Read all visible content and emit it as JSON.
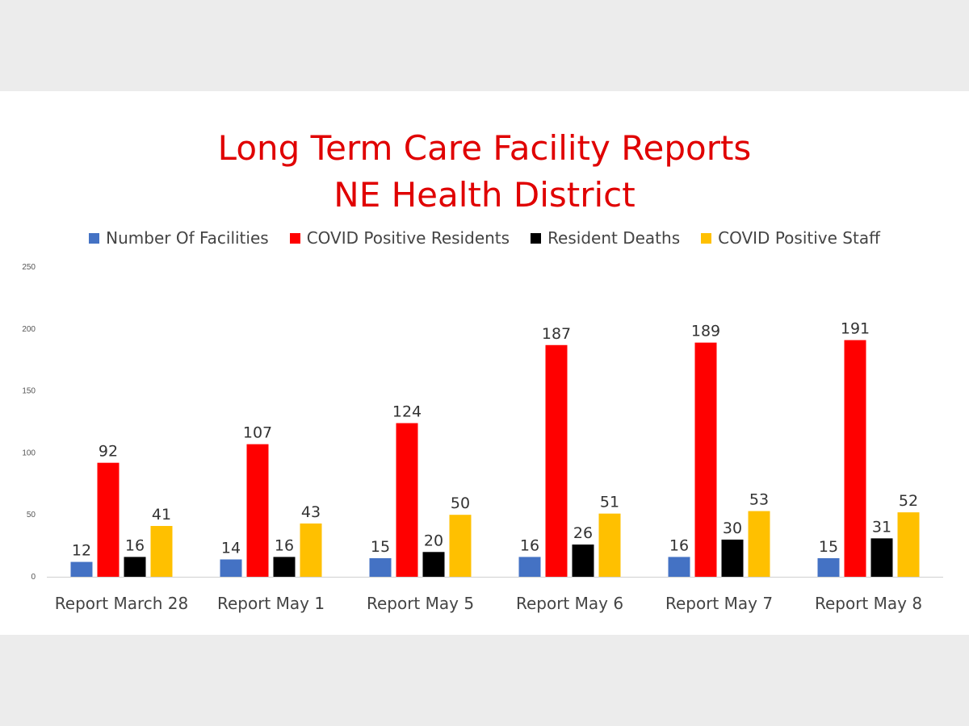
{
  "chart_data": {
    "type": "bar",
    "title": [
      "Long Term Care Facility Reports",
      "NE Health District"
    ],
    "xlabel": "",
    "ylabel": "",
    "ylim": [
      0,
      250
    ],
    "yticks": [
      "0",
      "50",
      "100",
      "150",
      "200",
      "250"
    ],
    "grid": false,
    "legend_position": "top",
    "categories": [
      "Report March 28",
      "Report May 1",
      "Report May 5",
      "Report May 6",
      "Report May 7",
      "Report May 8"
    ],
    "series": [
      {
        "name": "Number Of Facilities",
        "color": "#4472c4",
        "values": [
          12,
          14,
          15,
          16,
          16,
          15
        ]
      },
      {
        "name": "COVID Positive Residents",
        "color": "#ff0000",
        "values": [
          92,
          107,
          124,
          187,
          189,
          191
        ]
      },
      {
        "name": "Resident Deaths",
        "color": "#000000",
        "values": [
          16,
          16,
          20,
          26,
          30,
          31
        ]
      },
      {
        "name": "COVID Positive Staff",
        "color": "#ffc000",
        "values": [
          41,
          43,
          50,
          51,
          53,
          52
        ]
      }
    ]
  }
}
